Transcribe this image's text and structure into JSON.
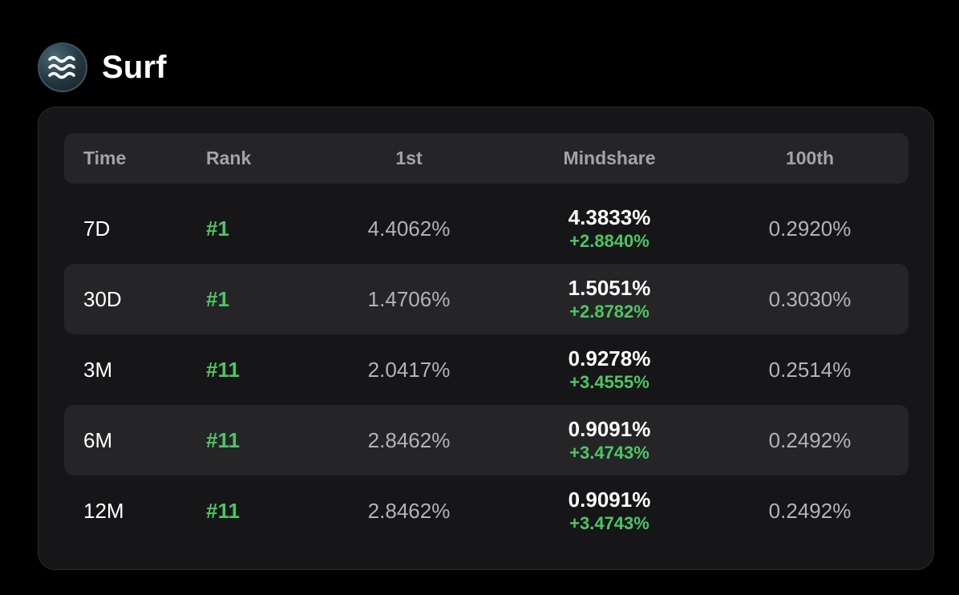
{
  "app": {
    "name": "Surf",
    "logo_icon": "waves-icon"
  },
  "colors": {
    "background": "#000000",
    "card": "#161618",
    "row_alt": "#252527",
    "positive": "#4fc563",
    "text_primary": "#ffffff",
    "text_muted": "#b3b3b7"
  },
  "table": {
    "columns": [
      "Time",
      "Rank",
      "1st",
      "Mindshare",
      "100th"
    ],
    "rows": [
      {
        "time": "7D",
        "rank": "#1",
        "first": "4.4062%",
        "mindshare": "4.3833%",
        "change": "+2.8840%",
        "hundredth": "0.2920%"
      },
      {
        "time": "30D",
        "rank": "#1",
        "first": "1.4706%",
        "mindshare": "1.5051%",
        "change": "+2.8782%",
        "hundredth": "0.3030%"
      },
      {
        "time": "3M",
        "rank": "#11",
        "first": "2.0417%",
        "mindshare": "0.9278%",
        "change": "+3.4555%",
        "hundredth": "0.2514%"
      },
      {
        "time": "6M",
        "rank": "#11",
        "first": "2.8462%",
        "mindshare": "0.9091%",
        "change": "+3.4743%",
        "hundredth": "0.2492%"
      },
      {
        "time": "12M",
        "rank": "#11",
        "first": "2.8462%",
        "mindshare": "0.9091%",
        "change": "+3.4743%",
        "hundredth": "0.2492%"
      }
    ]
  }
}
